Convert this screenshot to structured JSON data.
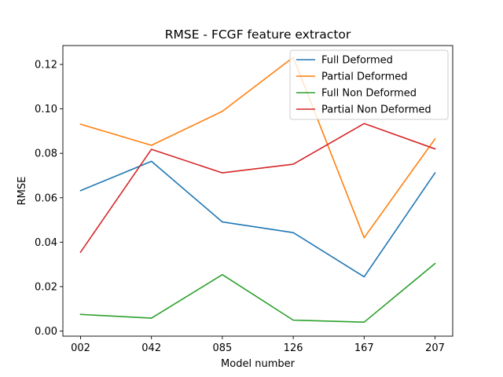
{
  "chart_data": {
    "type": "line",
    "title": "RMSE - FCGF feature extractor",
    "xlabel": "Model number",
    "ylabel": "RMSE",
    "categories": [
      "002",
      "042",
      "085",
      "126",
      "167",
      "207"
    ],
    "ylim": [
      -0.0023,
      0.1285
    ],
    "yticks": [
      0.0,
      0.02,
      0.04,
      0.06,
      0.08,
      0.1,
      0.12
    ],
    "ytick_labels": [
      "0.00",
      "0.02",
      "0.04",
      "0.06",
      "0.08",
      "0.10",
      "0.12"
    ],
    "grid": false,
    "legend_position": "top-right",
    "series": [
      {
        "name": "Full Deformed",
        "color": "#1f77b4",
        "values": [
          0.0632,
          0.0764,
          0.0491,
          0.0443,
          0.0244,
          0.0712
        ]
      },
      {
        "name": "Partial Deformed",
        "color": "#ff7f0e",
        "values": [
          0.0931,
          0.0836,
          0.0989,
          0.1232,
          0.042,
          0.0865
        ]
      },
      {
        "name": "Full Non Deformed",
        "color": "#2ca02c",
        "values": [
          0.0075,
          0.0058,
          0.0254,
          0.0049,
          0.004,
          0.0304
        ]
      },
      {
        "name": "Partial Non Deformed",
        "color": "#d62728",
        "values": [
          0.0355,
          0.0818,
          0.0712,
          0.0751,
          0.0934,
          0.082
        ]
      }
    ]
  }
}
